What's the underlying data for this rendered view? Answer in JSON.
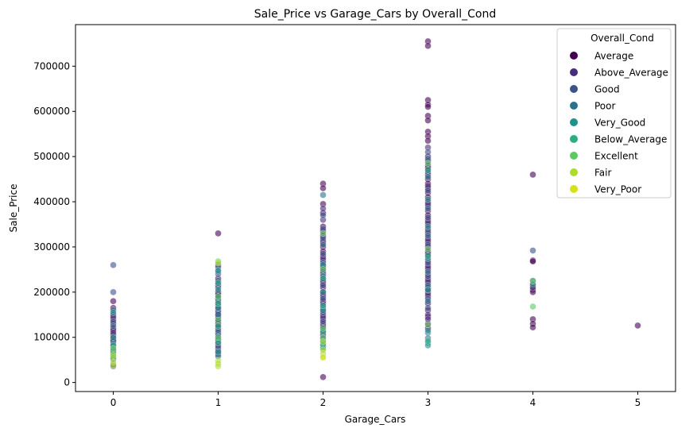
{
  "chart_data": {
    "type": "scatter",
    "title": "Sale_Price vs Garage_Cars by Overall_Cond",
    "xlabel": "Garage_Cars",
    "ylabel": "Sale_Price",
    "xlim": [
      -0.36,
      5.36
    ],
    "ylim": [
      -20000,
      792000
    ],
    "x_ticks": [
      0,
      1,
      2,
      3,
      4,
      5
    ],
    "y_ticks": [
      0,
      100000,
      200000,
      300000,
      400000,
      500000,
      600000,
      700000
    ],
    "grid": false,
    "legend": {
      "title": "Overall_Cond",
      "position": "top-right",
      "entries": [
        {
          "name": "Average",
          "color": "#440154"
        },
        {
          "name": "Above_Average",
          "color": "#472d7b"
        },
        {
          "name": "Good",
          "color": "#3b528b"
        },
        {
          "name": "Poor",
          "color": "#2c728e"
        },
        {
          "name": "Very_Good",
          "color": "#21918c"
        },
        {
          "name": "Below_Average",
          "color": "#28ae80"
        },
        {
          "name": "Excellent",
          "color": "#5ec962"
        },
        {
          "name": "Fair",
          "color": "#addc30"
        },
        {
          "name": "Very_Poor",
          "color": "#d5e21a"
        }
      ]
    },
    "marker_alpha": 0.6,
    "series": [
      {
        "name": "Average",
        "color": "#440154",
        "points": [
          [
            0,
            180000
          ],
          [
            0,
            165000
          ],
          [
            0,
            150000
          ],
          [
            0,
            140000
          ],
          [
            0,
            130000
          ],
          [
            0,
            120000
          ],
          [
            0,
            115000
          ],
          [
            0,
            105000
          ],
          [
            0,
            98000
          ],
          [
            0,
            90000
          ],
          [
            0,
            80000
          ],
          [
            0,
            72000
          ],
          [
            1,
            330000
          ],
          [
            1,
            230000
          ],
          [
            1,
            215000
          ],
          [
            1,
            200000
          ],
          [
            1,
            195000
          ],
          [
            1,
            185000
          ],
          [
            1,
            175000
          ],
          [
            1,
            160000
          ],
          [
            1,
            150000
          ],
          [
            1,
            140000
          ],
          [
            1,
            130000
          ],
          [
            1,
            120000
          ],
          [
            1,
            110000
          ],
          [
            1,
            95000
          ],
          [
            1,
            85000
          ],
          [
            1,
            75000
          ],
          [
            2,
            440000
          ],
          [
            2,
            430000
          ],
          [
            2,
            395000
          ],
          [
            2,
            375000
          ],
          [
            2,
            345000
          ],
          [
            2,
            335000
          ],
          [
            2,
            325000
          ],
          [
            2,
            310000
          ],
          [
            2,
            300000
          ],
          [
            2,
            290000
          ],
          [
            2,
            280000
          ],
          [
            2,
            270000
          ],
          [
            2,
            260000
          ],
          [
            2,
            250000
          ],
          [
            2,
            240000
          ],
          [
            2,
            230000
          ],
          [
            2,
            220000
          ],
          [
            2,
            210000
          ],
          [
            2,
            200000
          ],
          [
            2,
            190000
          ],
          [
            2,
            180000
          ],
          [
            2,
            170000
          ],
          [
            2,
            160000
          ],
          [
            2,
            150000
          ],
          [
            2,
            140000
          ],
          [
            2,
            130000
          ],
          [
            2,
            120000
          ],
          [
            2,
            110000
          ],
          [
            2,
            12000
          ],
          [
            3,
            755000
          ],
          [
            3,
            745000
          ],
          [
            3,
            625000
          ],
          [
            3,
            615000
          ],
          [
            3,
            610000
          ],
          [
            3,
            590000
          ],
          [
            3,
            580000
          ],
          [
            3,
            555000
          ],
          [
            3,
            545000
          ],
          [
            3,
            535000
          ],
          [
            3,
            500000
          ],
          [
            3,
            490000
          ],
          [
            3,
            480000
          ],
          [
            3,
            470000
          ],
          [
            3,
            460000
          ],
          [
            3,
            450000
          ],
          [
            3,
            440000
          ],
          [
            3,
            430000
          ],
          [
            3,
            420000
          ],
          [
            3,
            410000
          ],
          [
            3,
            400000
          ],
          [
            3,
            390000
          ],
          [
            3,
            380000
          ],
          [
            3,
            370000
          ],
          [
            3,
            360000
          ],
          [
            3,
            350000
          ],
          [
            3,
            340000
          ],
          [
            3,
            330000
          ],
          [
            3,
            320000
          ],
          [
            3,
            310000
          ],
          [
            3,
            300000
          ],
          [
            3,
            290000
          ],
          [
            3,
            280000
          ],
          [
            3,
            270000
          ],
          [
            3,
            260000
          ],
          [
            3,
            250000
          ],
          [
            3,
            240000
          ],
          [
            3,
            230000
          ],
          [
            3,
            220000
          ],
          [
            3,
            210000
          ],
          [
            3,
            200000
          ],
          [
            3,
            190000
          ],
          [
            3,
            175000
          ],
          [
            3,
            160000
          ],
          [
            3,
            145000
          ],
          [
            3,
            130000
          ],
          [
            3,
            120000
          ],
          [
            4,
            460000
          ],
          [
            4,
            270000
          ],
          [
            4,
            268000
          ],
          [
            4,
            215000
          ],
          [
            4,
            205000
          ],
          [
            4,
            200000
          ],
          [
            4,
            140000
          ],
          [
            4,
            130000
          ],
          [
            4,
            122000
          ],
          [
            5,
            126000
          ]
        ]
      },
      {
        "name": "Above_Average",
        "color": "#472d7b",
        "points": [
          [
            0,
            145000
          ],
          [
            0,
            110000
          ],
          [
            0,
            95000
          ],
          [
            0,
            60000
          ],
          [
            0,
            40000
          ],
          [
            1,
            260000
          ],
          [
            1,
            220000
          ],
          [
            1,
            170000
          ],
          [
            1,
            155000
          ],
          [
            1,
            135000
          ],
          [
            1,
            100000
          ],
          [
            1,
            90000
          ],
          [
            1,
            70000
          ],
          [
            1,
            62000
          ],
          [
            2,
            385000
          ],
          [
            2,
            360000
          ],
          [
            2,
            315000
          ],
          [
            2,
            275000
          ],
          [
            2,
            255000
          ],
          [
            2,
            225000
          ],
          [
            2,
            195000
          ],
          [
            2,
            175000
          ],
          [
            2,
            145000
          ],
          [
            2,
            125000
          ],
          [
            2,
            105000
          ],
          [
            2,
            95000
          ],
          [
            3,
            520000
          ],
          [
            3,
            475000
          ],
          [
            3,
            435000
          ],
          [
            3,
            395000
          ],
          [
            3,
            355000
          ],
          [
            3,
            315000
          ],
          [
            3,
            285000
          ],
          [
            3,
            255000
          ],
          [
            3,
            225000
          ],
          [
            3,
            195000
          ],
          [
            3,
            150000
          ],
          [
            3,
            140000
          ],
          [
            4,
            210000
          ]
        ]
      },
      {
        "name": "Good",
        "color": "#3b528b",
        "points": [
          [
            0,
            260000
          ],
          [
            0,
            200000
          ],
          [
            0,
            135000
          ],
          [
            0,
            92000
          ],
          [
            0,
            55000
          ],
          [
            0,
            36000
          ],
          [
            1,
            255000
          ],
          [
            1,
            240000
          ],
          [
            1,
            210000
          ],
          [
            1,
            190000
          ],
          [
            1,
            165000
          ],
          [
            1,
            145000
          ],
          [
            1,
            125000
          ],
          [
            1,
            105000
          ],
          [
            1,
            80000
          ],
          [
            1,
            65000
          ],
          [
            2,
            370000
          ],
          [
            2,
            340000
          ],
          [
            2,
            320000
          ],
          [
            2,
            285000
          ],
          [
            2,
            265000
          ],
          [
            2,
            245000
          ],
          [
            2,
            215000
          ],
          [
            2,
            185000
          ],
          [
            2,
            155000
          ],
          [
            2,
            135000
          ],
          [
            2,
            115000
          ],
          [
            2,
            100000
          ],
          [
            3,
            510000
          ],
          [
            3,
            465000
          ],
          [
            3,
            425000
          ],
          [
            3,
            365000
          ],
          [
            3,
            335000
          ],
          [
            3,
            305000
          ],
          [
            3,
            265000
          ],
          [
            3,
            235000
          ],
          [
            3,
            205000
          ],
          [
            3,
            185000
          ],
          [
            3,
            165000
          ],
          [
            4,
            292000
          ],
          [
            4,
            225000
          ]
        ]
      },
      {
        "name": "Poor",
        "color": "#2c728e",
        "points": [
          [
            0,
            160000
          ],
          [
            0,
            125000
          ],
          [
            0,
            85000
          ],
          [
            0,
            52000
          ],
          [
            1,
            245000
          ],
          [
            1,
            225000
          ],
          [
            1,
            180000
          ],
          [
            1,
            150000
          ],
          [
            1,
            115000
          ],
          [
            1,
            58000
          ],
          [
            2,
            415000
          ],
          [
            2,
            305000
          ],
          [
            2,
            235000
          ],
          [
            2,
            165000
          ],
          [
            2,
            88000
          ],
          [
            2,
            80000
          ],
          [
            3,
            495000
          ],
          [
            3,
            455000
          ],
          [
            3,
            385000
          ],
          [
            3,
            325000
          ],
          [
            3,
            245000
          ],
          [
            3,
            215000
          ],
          [
            3,
            180000
          ],
          [
            3,
            110000
          ],
          [
            3,
            98000
          ]
        ]
      },
      {
        "name": "Very_Good",
        "color": "#21918c",
        "points": [
          [
            0,
            155000
          ],
          [
            0,
            100000
          ],
          [
            0,
            70000
          ],
          [
            1,
            248000
          ],
          [
            1,
            205000
          ],
          [
            1,
            165000
          ],
          [
            1,
            95000
          ],
          [
            1,
            68000
          ],
          [
            2,
            260000
          ],
          [
            2,
            200000
          ],
          [
            2,
            160000
          ],
          [
            2,
            92000
          ],
          [
            2,
            75000
          ],
          [
            3,
            405000
          ],
          [
            3,
            345000
          ],
          [
            3,
            275000
          ],
          [
            3,
            205000
          ],
          [
            3,
            115000
          ],
          [
            3,
            88000
          ],
          [
            3,
            82000
          ],
          [
            4,
            218000
          ]
        ]
      },
      {
        "name": "Below_Average",
        "color": "#28ae80",
        "points": [
          [
            0,
            82000
          ],
          [
            0,
            65000
          ],
          [
            1,
            220000
          ],
          [
            1,
            175000
          ],
          [
            1,
            125000
          ],
          [
            1,
            88000
          ],
          [
            2,
            230000
          ],
          [
            2,
            170000
          ],
          [
            2,
            112000
          ],
          [
            2,
            84000
          ],
          [
            3,
            470000
          ],
          [
            3,
            280000
          ],
          [
            3,
            92000
          ]
        ]
      },
      {
        "name": "Excellent",
        "color": "#5ec962",
        "points": [
          [
            0,
            75000
          ],
          [
            0,
            56000
          ],
          [
            1,
            268000
          ],
          [
            1,
            190000
          ],
          [
            1,
            138000
          ],
          [
            1,
            100000
          ],
          [
            2,
            330000
          ],
          [
            2,
            250000
          ],
          [
            2,
            120000
          ],
          [
            2,
            98000
          ],
          [
            3,
            485000
          ],
          [
            3,
            295000
          ],
          [
            3,
            128000
          ],
          [
            4,
            225000
          ],
          [
            4,
            168000
          ]
        ]
      },
      {
        "name": "Fair",
        "color": "#addc30",
        "points": [
          [
            0,
            60000
          ],
          [
            0,
            45000
          ],
          [
            0,
            38000
          ],
          [
            1,
            265000
          ],
          [
            1,
            48000
          ],
          [
            1,
            42000
          ],
          [
            1,
            36000
          ],
          [
            2,
            90000
          ],
          [
            2,
            72000
          ],
          [
            2,
            64000
          ],
          [
            2,
            57000
          ]
        ]
      },
      {
        "name": "Very_Poor",
        "color": "#d5e21a",
        "points": [
          [
            2,
            55000
          ]
        ]
      }
    ]
  }
}
